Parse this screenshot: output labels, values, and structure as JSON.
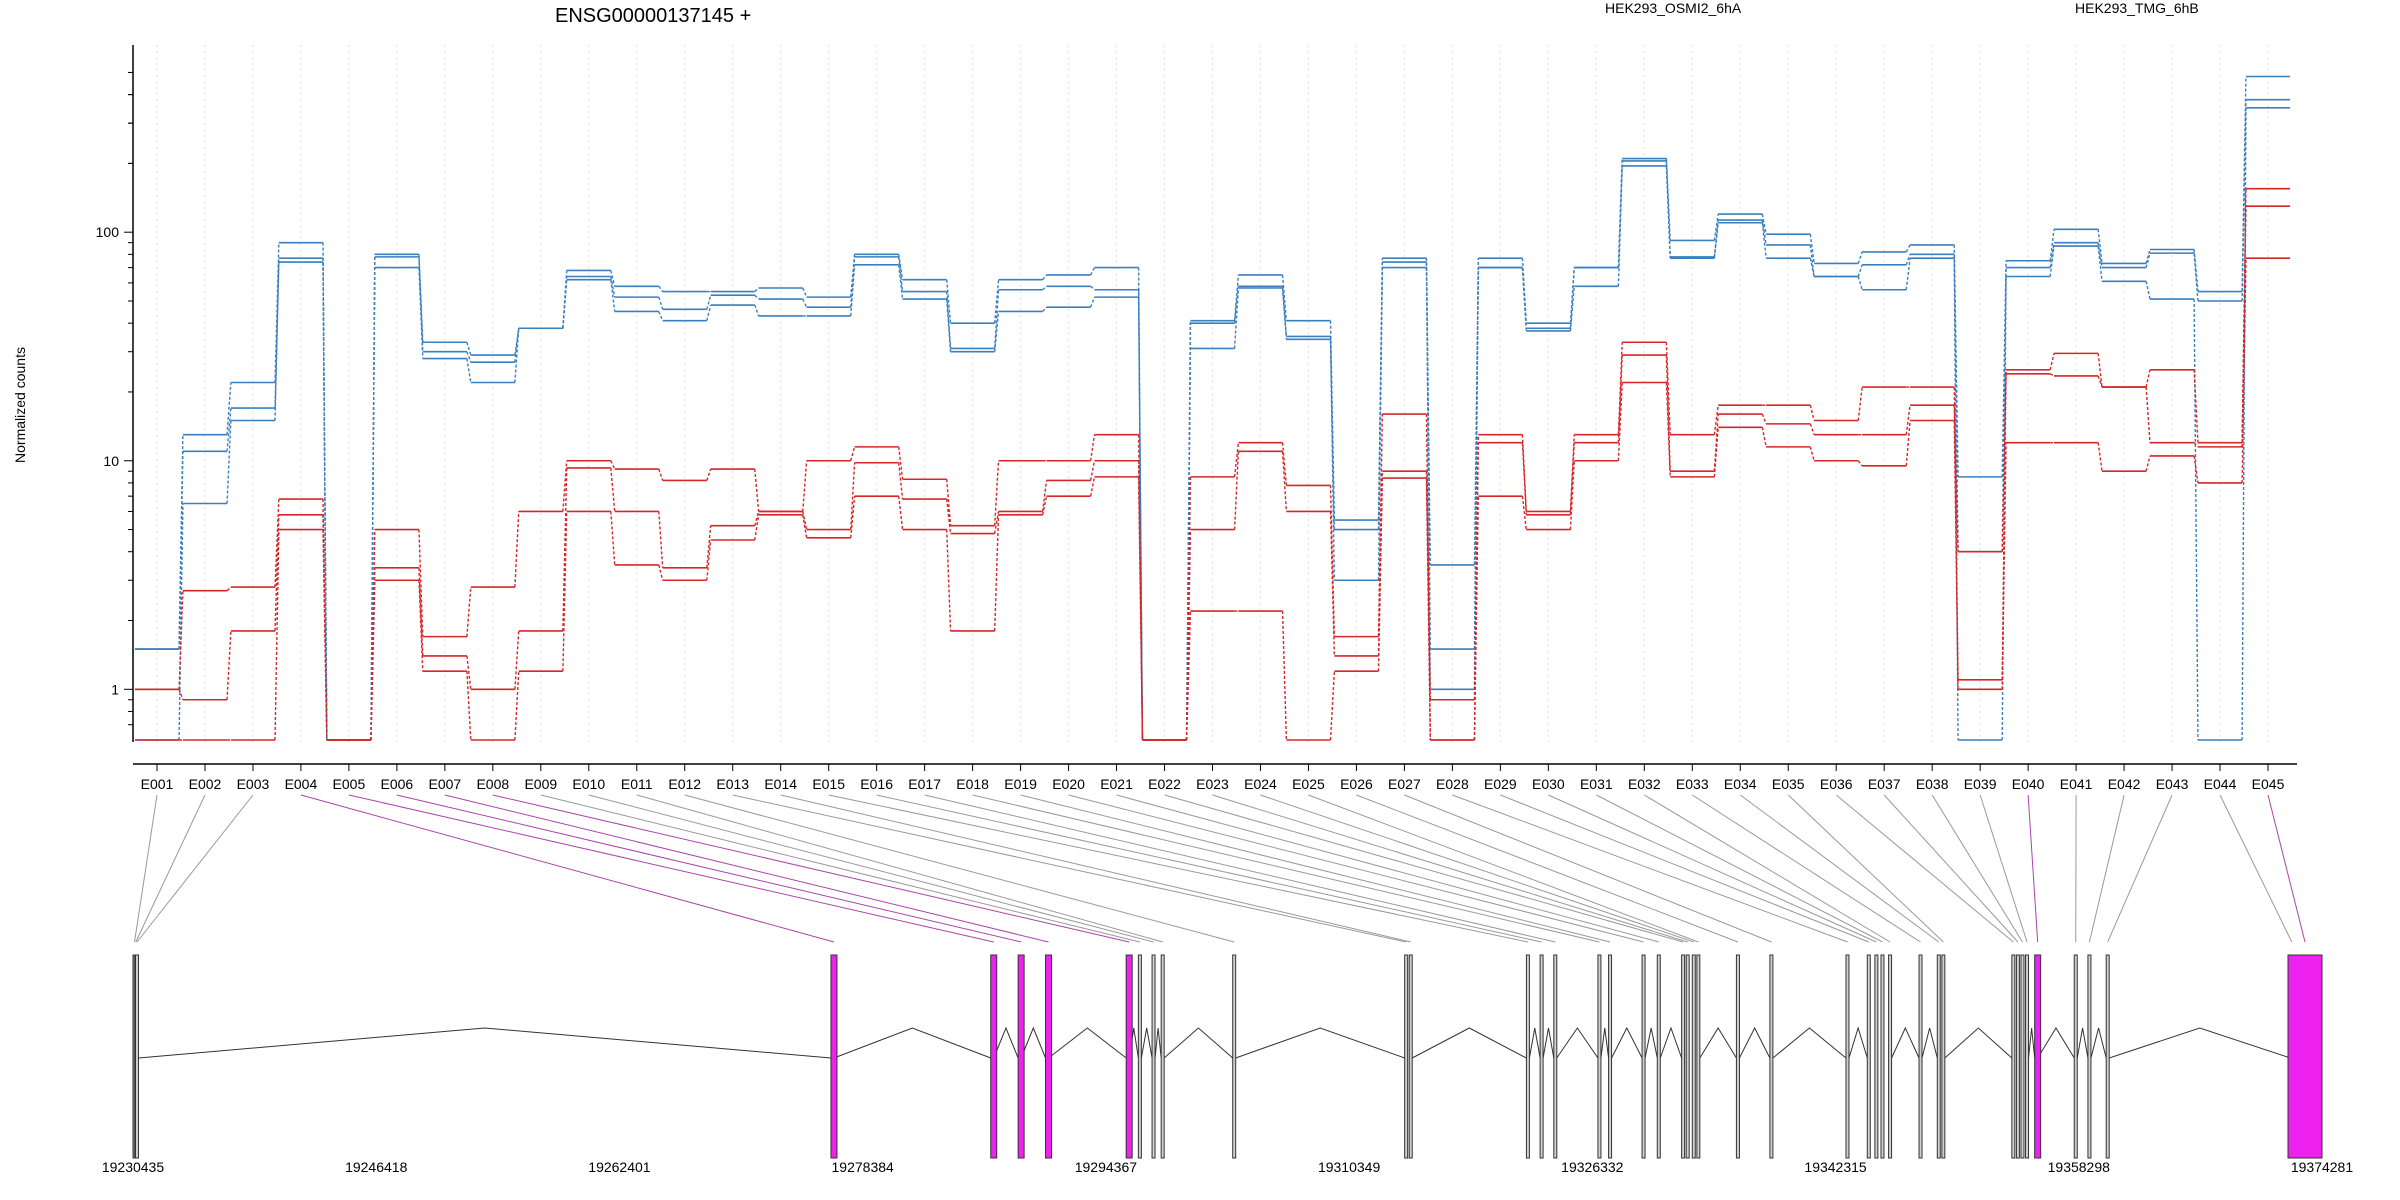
{
  "chart_data": {
    "type": "line",
    "title": "ENSG00000137145 +",
    "ylabel": "Normalized counts",
    "yscale": "log",
    "yticks": [
      "1",
      "10",
      "100"
    ],
    "ylim": [
      0.6,
      550
    ],
    "legend": [
      {
        "label": "HEK293_OSMI2_6hA",
        "color": "#d62728"
      },
      {
        "label": "HEK293_TMG_6hB",
        "color": "#3a7fbf"
      }
    ],
    "categories": [
      "E001",
      "E002",
      "E003",
      "E004",
      "E005",
      "E006",
      "E007",
      "E008",
      "E009",
      "E010",
      "E011",
      "E012",
      "E013",
      "E014",
      "E015",
      "E016",
      "E017",
      "E018",
      "E019",
      "E020",
      "E021",
      "E022",
      "E023",
      "E024",
      "E025",
      "E026",
      "E027",
      "E028",
      "E029",
      "E030",
      "E031",
      "E032",
      "E033",
      "E034",
      "E035",
      "E036",
      "E037",
      "E038",
      "E039",
      "E040",
      "E041",
      "E042",
      "E043",
      "E044",
      "E045"
    ],
    "series": [
      {
        "group": "HEK293_TMG_6hB",
        "color": "#3a7fbf",
        "values": [
          1.5,
          13,
          22,
          90,
          0.6,
          80,
          33,
          29,
          38,
          68,
          58,
          55,
          55,
          57,
          52,
          80,
          62,
          40,
          62,
          65,
          70,
          0.6,
          41,
          65,
          41,
          5.5,
          77,
          3.5,
          77,
          40,
          70,
          210,
          92,
          120,
          98,
          73,
          82,
          88,
          8.5,
          75,
          103,
          73,
          84,
          55,
          480
        ]
      },
      {
        "group": "HEK293_TMG_6hB",
        "color": "#3a7fbf",
        "values": [
          1.5,
          11,
          17,
          77,
          0.6,
          78,
          30,
          27,
          38,
          64,
          52,
          46,
          53,
          51,
          47,
          78,
          55,
          31,
          56,
          58,
          56,
          0.6,
          40,
          58,
          35,
          5,
          74,
          1.5,
          70,
          38,
          70,
          205,
          78,
          113,
          88,
          64,
          72,
          80,
          4,
          70,
          90,
          70,
          81,
          50,
          380
        ]
      },
      {
        "group": "HEK293_TMG_6hB",
        "color": "#3a7fbf",
        "values": [
          0.6,
          6.5,
          15,
          74,
          0.6,
          70,
          28,
          22,
          38,
          62,
          45,
          41,
          48,
          43,
          43,
          72,
          51,
          30,
          45,
          47,
          52,
          0.6,
          31,
          57,
          34,
          3,
          70,
          1,
          70,
          37,
          58,
          195,
          77,
          110,
          77,
          64,
          56,
          77,
          0.6,
          64,
          87,
          61,
          51,
          0.6,
          350
        ]
      },
      {
        "group": "HEK293_OSMI2_6hA",
        "color": "#d62728",
        "values": [
          1,
          2.7,
          2.8,
          6.8,
          0.6,
          5,
          1.7,
          2.8,
          6,
          10,
          9.2,
          8.2,
          9.2,
          6,
          10,
          11.5,
          8.3,
          5.2,
          10,
          10,
          13,
          0.6,
          8.5,
          12,
          7.8,
          1.7,
          16,
          0.6,
          13,
          6,
          13,
          33,
          13,
          17.5,
          17.5,
          15,
          21,
          21,
          1.1,
          25,
          29.5,
          21,
          25,
          12,
          155
        ]
      },
      {
        "group": "HEK293_OSMI2_6hA",
        "color": "#d62728",
        "values": [
          1,
          0.9,
          1.8,
          5.8,
          0.6,
          3.4,
          1.4,
          1,
          1.8,
          9.3,
          6,
          3.4,
          5.2,
          6,
          5,
          9.8,
          6.8,
          4.8,
          6,
          8.2,
          10,
          0.6,
          5,
          11,
          6,
          1.4,
          9,
          0.9,
          12,
          5.8,
          12,
          29,
          9,
          16,
          14.5,
          13,
          13,
          17.5,
          4,
          24,
          23.5,
          21,
          12,
          11.5,
          130
        ]
      },
      {
        "group": "HEK293_OSMI2_6hA",
        "color": "#d62728",
        "values": [
          0.6,
          0.6,
          0.6,
          5,
          0.6,
          3,
          1.2,
          0.6,
          1.2,
          6,
          3.5,
          3,
          4.5,
          5.8,
          4.6,
          7,
          5,
          1.8,
          5.8,
          7,
          8.5,
          0.6,
          2.2,
          2.2,
          0.6,
          1.2,
          8.4,
          0.6,
          7,
          5,
          10,
          22,
          8.5,
          14,
          11.5,
          10,
          9.5,
          15,
          1,
          12,
          12,
          9,
          10.5,
          8,
          77
        ]
      }
    ],
    "coordinates": {
      "ticks": [
        "19230435",
        "19246418",
        "19262401",
        "19278384",
        "19294367",
        "19310349",
        "19326332",
        "19342315",
        "19358298",
        "19374281"
      ],
      "range": [
        19230435,
        19374281
      ]
    },
    "exon_positions": [
      19230435,
      19230520,
      19230600,
      19276300,
      19286800,
      19288600,
      19290400,
      19295700,
      19296500,
      19297400,
      19298000,
      19302700,
      19314000,
      19314300,
      19322000,
      19322900,
      19323800,
      19326700,
      19327400,
      19329600,
      19330600,
      19332200,
      19332500,
      19332900,
      19333200,
      19335800,
      19338000,
      19343000,
      19344400,
      19344900,
      19345300,
      19345800,
      19347800,
      19349000,
      19349300,
      19353900,
      19354200,
      19354500,
      19354800,
      19355400,
      19358000,
      19358900,
      19360100,
      19372200,
      19374281
    ],
    "highlighted_exons": [
      "E004",
      "E005",
      "E006",
      "E007",
      "E008",
      "E040",
      "E045"
    ],
    "exon_highlight_color": "#ee22ee"
  }
}
